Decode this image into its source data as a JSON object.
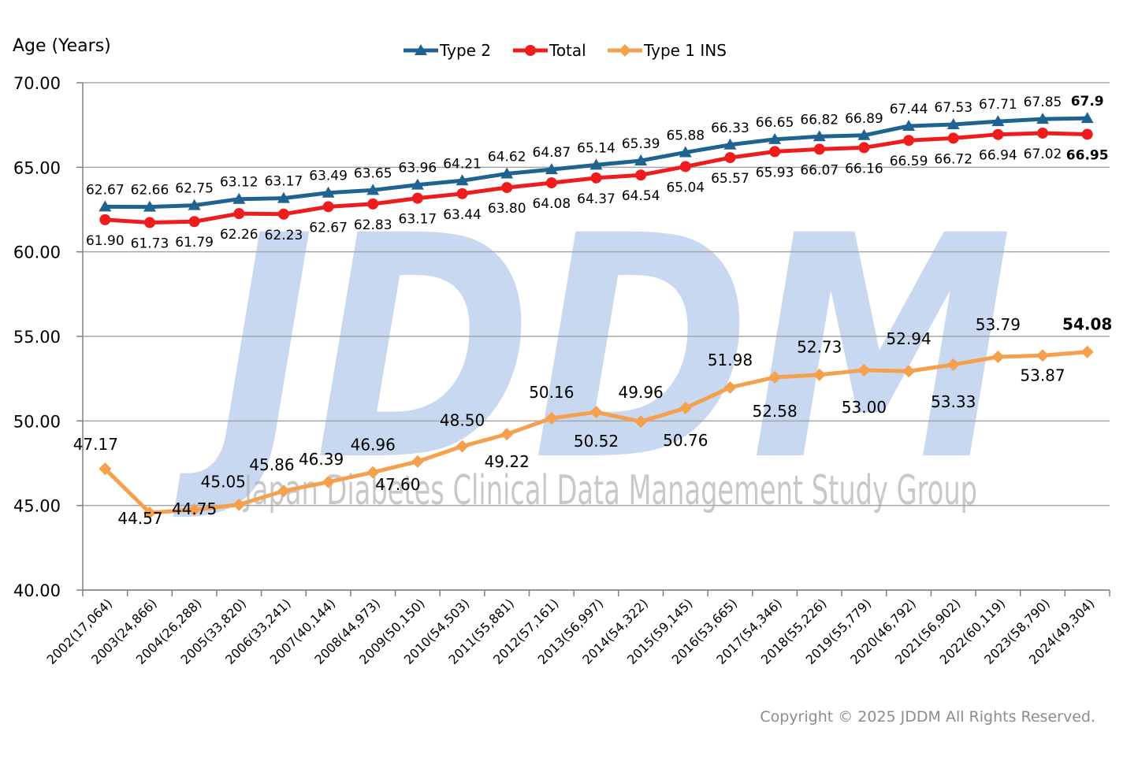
{
  "watermark": {
    "logo_text": "JDDM",
    "org_text": "Japan Diabetes Clinical Data Management Study Group"
  },
  "copyright": "Copyright © 2025 JDDM All Rights Reserved.",
  "colors": {
    "type2": "#1f6491",
    "total": "#ee1c1c",
    "type1": "#f5a04c",
    "grid": "#a6a6a6",
    "watermark": "#c8d8f0"
  },
  "chart_data": {
    "type": "line",
    "ylabel": "Age (Years)",
    "ylim": [
      40,
      70
    ],
    "yticks": [
      "40.00",
      "45.00",
      "50.00",
      "55.00",
      "60.00",
      "65.00",
      "70.00"
    ],
    "grid": true,
    "legend_position": "top-center",
    "categories": [
      "2002(17,064)",
      "2003(24,866)",
      "2004(26,288)",
      "2005(33,820)",
      "2006(33,241)",
      "2007(40,144)",
      "2008(44,973)",
      "2009(50,150)",
      "2010(54,503)",
      "2011(55,881)",
      "2012(57,161)",
      "2013(56,997)",
      "2014(54,322)",
      "2015(59,145)",
      "2016(53,665)",
      "2017(54,346)",
      "2018(55,226)",
      "2019(55,779)",
      "2020(46,792)",
      "2021(56,902)",
      "2022(60,119)",
      "2023(58,790)",
      "2024(49,304)"
    ],
    "series": [
      {
        "name": "Type 2",
        "marker": "triangle",
        "color": "#1f6491",
        "values": [
          62.67,
          62.66,
          62.75,
          63.12,
          63.17,
          63.49,
          63.65,
          63.96,
          64.21,
          64.62,
          64.87,
          65.14,
          65.39,
          65.88,
          66.33,
          66.65,
          66.82,
          66.89,
          67.44,
          67.53,
          67.71,
          67.85,
          67.9
        ],
        "labels": [
          "62.67",
          "62.66",
          "62.75",
          "63.12",
          "63.17",
          "63.49",
          "63.65",
          "63.96",
          "64.21",
          "64.62",
          "64.87",
          "65.14",
          "65.39",
          "65.88",
          "66.33",
          "66.65",
          "66.82",
          "66.89",
          "67.44",
          "67.53",
          "67.71",
          "67.85",
          "67.9"
        ]
      },
      {
        "name": "Total",
        "marker": "circle",
        "color": "#ee1c1c",
        "values": [
          61.9,
          61.73,
          61.79,
          62.26,
          62.23,
          62.67,
          62.83,
          63.17,
          63.44,
          63.8,
          64.08,
          64.37,
          64.54,
          65.04,
          65.57,
          65.93,
          66.07,
          66.16,
          66.59,
          66.72,
          66.94,
          67.02,
          66.95
        ],
        "labels": [
          "61.90",
          "61.73",
          "61.79",
          "62.26",
          "62.23",
          "62.67",
          "62.83",
          "63.17",
          "63.44",
          "63.80",
          "64.08",
          "64.37",
          "64.54",
          "65.04",
          "65.57",
          "65.93",
          "66.07",
          "66.16",
          "66.59",
          "66.72",
          "66.94",
          "67.02",
          "66.95"
        ]
      },
      {
        "name": "Type 1 INS",
        "marker": "diamond",
        "color": "#f5a04c",
        "values": [
          47.17,
          44.57,
          44.75,
          45.05,
          45.86,
          46.39,
          46.96,
          47.6,
          48.5,
          49.22,
          50.16,
          50.52,
          49.96,
          50.76,
          51.98,
          52.58,
          52.73,
          53.0,
          52.94,
          53.33,
          53.79,
          53.87,
          54.08
        ],
        "labels": [
          "47.17",
          "44.57",
          "44.75",
          "45.05",
          "45.86",
          "46.39",
          "46.96",
          "47.60",
          "48.50",
          "49.22",
          "50.16",
          "50.52",
          "49.96",
          "50.76",
          "51.98",
          "52.58",
          "52.73",
          "53.00",
          "52.94",
          "53.33",
          "53.79",
          "53.87",
          "54.08"
        ]
      }
    ]
  }
}
